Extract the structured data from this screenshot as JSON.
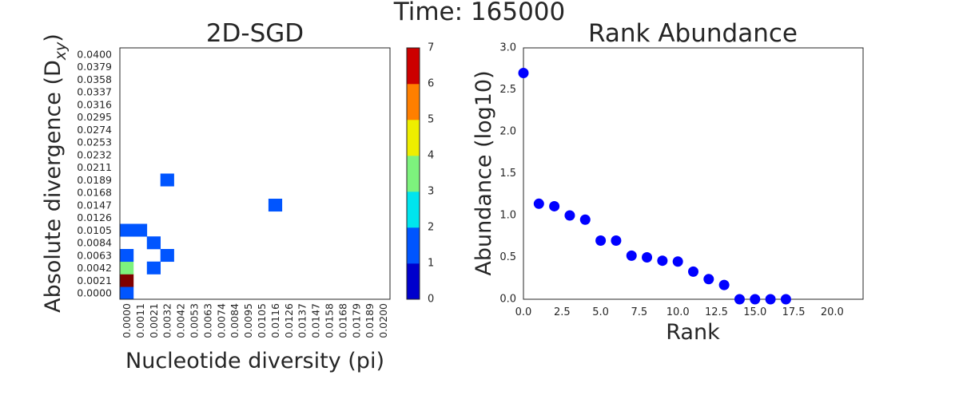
{
  "figure": {
    "suptitle": "Time: 165000"
  },
  "chart_data": [
    {
      "type": "heatmap",
      "title": "2D-SGD",
      "xlabel": "Nucleotide diversity (pi)",
      "ylabel_main": "Absolute divergence (D",
      "ylabel_sub": "xy",
      "ylabel_close": ")",
      "x_ticks": [
        "0.0000",
        "0.0011",
        "0.0021",
        "0.0032",
        "0.0042",
        "0.0053",
        "0.0063",
        "0.0074",
        "0.0084",
        "0.0095",
        "0.0105",
        "0.0116",
        "0.0126",
        "0.0137",
        "0.0147",
        "0.0158",
        "0.0168",
        "0.0179",
        "0.0189",
        "0.0200"
      ],
      "y_ticks": [
        "0.0000",
        "0.0021",
        "0.0042",
        "0.0063",
        "0.0084",
        "0.0105",
        "0.0126",
        "0.0147",
        "0.0168",
        "0.0189",
        "0.0211",
        "0.0232",
        "0.0253",
        "0.0274",
        "0.0295",
        "0.0316",
        "0.0337",
        "0.0358",
        "0.0379",
        "0.0400"
      ],
      "cells": [
        {
          "col": 0,
          "row": 0,
          "value": 1
        },
        {
          "col": 0,
          "row": 1,
          "value": 7
        },
        {
          "col": 0,
          "row": 2,
          "value": 3
        },
        {
          "col": 0,
          "row": 3,
          "value": 1
        },
        {
          "col": 0,
          "row": 5,
          "value": 1
        },
        {
          "col": 1,
          "row": 5,
          "value": 1
        },
        {
          "col": 2,
          "row": 2,
          "value": 1
        },
        {
          "col": 2,
          "row": 4,
          "value": 1
        },
        {
          "col": 3,
          "row": 3,
          "value": 1
        },
        {
          "col": 3,
          "row": 9,
          "value": 1
        },
        {
          "col": 11,
          "row": 7,
          "value": 1
        }
      ],
      "colorbar": {
        "ticks": [
          "0",
          "1",
          "2",
          "3",
          "4",
          "5",
          "6",
          "7"
        ],
        "colors": [
          "#0000cc",
          "#0055ff",
          "#00e5ee",
          "#7df27d",
          "#eeee00",
          "#ff7f00",
          "#cc0000"
        ],
        "max_color": "#800000"
      }
    },
    {
      "type": "scatter",
      "title": "Rank Abundance",
      "xlabel": "Rank",
      "ylabel": "Abundance (log10)",
      "xlim": [
        0,
        22
      ],
      "ylim": [
        0,
        3.0
      ],
      "x_ticks": [
        "0.0",
        "2.5",
        "5.0",
        "7.5",
        "10.0",
        "12.5",
        "15.0",
        "17.5",
        "20.0"
      ],
      "y_ticks": [
        "0.0",
        "0.5",
        "1.0",
        "1.5",
        "2.0",
        "2.5",
        "3.0"
      ],
      "color": "#0000ff",
      "x": [
        0,
        1,
        2,
        3,
        4,
        5,
        6,
        7,
        8,
        9,
        10,
        11,
        12,
        13,
        14,
        15,
        16,
        17
      ],
      "y": [
        2.7,
        1.14,
        1.11,
        1.0,
        0.95,
        0.7,
        0.7,
        0.52,
        0.5,
        0.46,
        0.45,
        0.33,
        0.24,
        0.17,
        0.0,
        0.0,
        0.0,
        0.0
      ]
    }
  ]
}
